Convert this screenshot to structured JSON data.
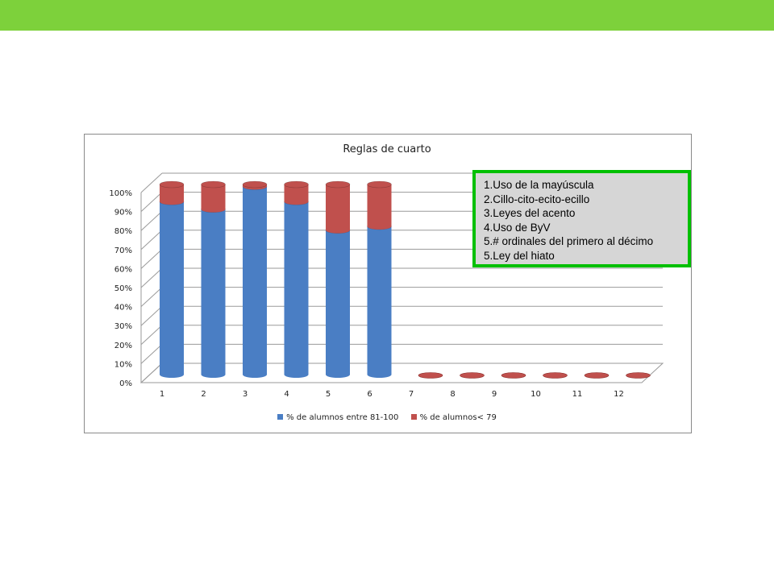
{
  "colors": {
    "top_bar": "#7dd13b",
    "series1": "#4a7ec4",
    "series2": "#c0504d",
    "note_border": "#00c000",
    "note_bg": "#d6d6d6"
  },
  "note": {
    "lines": [
      "1.Uso de la mayúscula",
      "2.Cillo-cito-ecito-ecillo",
      "3.Leyes del acento",
      "4.Uso de ByV",
      "5.# ordinales del primero al décimo",
      "5.Ley del hiato"
    ]
  },
  "chart_data": {
    "type": "bar",
    "stacked": true,
    "three_d": true,
    "title": "Reglas de cuarto",
    "categories": [
      "1",
      "2",
      "3",
      "4",
      "5",
      "6",
      "7",
      "8",
      "9",
      "10",
      "11",
      "12"
    ],
    "series": [
      {
        "name": "% de alumnos entre 81-100",
        "values": [
          91,
          87,
          99,
          91,
          76,
          78,
          0,
          0,
          0,
          0,
          0,
          0
        ]
      },
      {
        "name": "% de alumnos< 79",
        "values": [
          9,
          13,
          1,
          9,
          24,
          22,
          0,
          0,
          0,
          0,
          0,
          0
        ]
      }
    ],
    "yticks": [
      "0%",
      "10%",
      "20%",
      "30%",
      "40%",
      "50%",
      "60%",
      "70%",
      "80%",
      "90%",
      "100%"
    ],
    "ylim": [
      0,
      100
    ],
    "grid": true,
    "legend_position": "bottom"
  }
}
